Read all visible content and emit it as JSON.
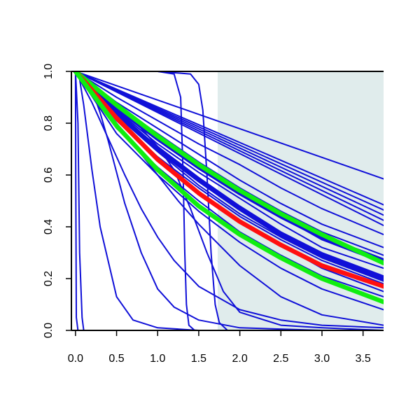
{
  "chart_data": {
    "type": "line",
    "title": "",
    "xlabel": "",
    "ylabel": "",
    "xlim": [
      -0.05,
      3.75
    ],
    "ylim": [
      0.0,
      1.0
    ],
    "grid": false,
    "legend": "none",
    "x_ticks": [
      {
        "value": 0.0,
        "label": "0.0"
      },
      {
        "value": 0.5,
        "label": "0.5"
      },
      {
        "value": 1.0,
        "label": "1.0"
      },
      {
        "value": 1.5,
        "label": "1.5"
      },
      {
        "value": 2.0,
        "label": "2.0"
      },
      {
        "value": 2.5,
        "label": "2.5"
      },
      {
        "value": 3.0,
        "label": "3.0"
      },
      {
        "value": 3.5,
        "label": "3.5"
      }
    ],
    "y_ticks": [
      {
        "value": 0.0,
        "label": "0.0"
      },
      {
        "value": 0.2,
        "label": "0.2"
      },
      {
        "value": 0.4,
        "label": "0.4"
      },
      {
        "value": 0.6,
        "label": "0.6"
      },
      {
        "value": 0.8,
        "label": "0.8"
      },
      {
        "value": 1.0,
        "label": "1.0"
      }
    ],
    "shaded_region": {
      "x_from": 1.73,
      "x_to": 3.75,
      "color": "#e0ecec"
    },
    "colors": {
      "blue": "#1010d8",
      "red": "#ff1010",
      "green": "#10ee10",
      "axis": "#000000"
    },
    "series": [
      {
        "color": "#1010d8",
        "width": 2,
        "x": [
          0,
          0.003,
          0.01,
          0.03
        ],
        "y": [
          1,
          0.6,
          0.05,
          0
        ]
      },
      {
        "color": "#1010d8",
        "width": 2,
        "x": [
          0,
          0.03,
          0.05,
          0.08,
          0.1
        ],
        "y": [
          1,
          0.8,
          0.3,
          0.05,
          0
        ]
      },
      {
        "color": "#1010d8",
        "width": 2,
        "x": [
          0,
          0.05,
          0.1,
          0.2,
          0.3,
          0.5,
          0.7,
          1.0,
          1.5,
          2.0,
          3.0,
          3.75
        ],
        "y": [
          1,
          0.97,
          0.87,
          0.62,
          0.4,
          0.13,
          0.04,
          0.01,
          0,
          0,
          0,
          0
        ]
      },
      {
        "color": "#1010d8",
        "width": 2,
        "x": [
          0,
          0.1,
          0.2,
          0.3,
          0.4,
          0.5,
          0.6,
          0.8,
          1.0,
          1.2,
          1.5,
          2.0,
          3.0,
          3.75
        ],
        "y": [
          1,
          0.98,
          0.93,
          0.84,
          0.73,
          0.61,
          0.49,
          0.3,
          0.16,
          0.09,
          0.04,
          0.01,
          0,
          0
        ]
      },
      {
        "color": "#1010d8",
        "width": 2,
        "x": [
          0,
          0.2,
          0.4,
          0.6,
          0.8,
          1.0,
          1.2,
          1.5,
          2.0,
          2.5,
          3.0,
          3.75
        ],
        "y": [
          1,
          0.88,
          0.74,
          0.6,
          0.47,
          0.36,
          0.27,
          0.17,
          0.08,
          0.04,
          0.02,
          0.01
        ]
      },
      {
        "color": "#1010d8",
        "width": 2,
        "x": [
          0,
          0.25,
          0.5,
          0.75,
          1.0,
          1.25,
          1.5,
          2.0,
          2.5,
          3.0,
          3.75
        ],
        "y": [
          1,
          0.9,
          0.8,
          0.7,
          0.6,
          0.5,
          0.41,
          0.25,
          0.13,
          0.06,
          0.02
        ]
      },
      {
        "color": "#1010d8",
        "width": 2,
        "x": [
          0,
          0.5,
          0.8,
          1.0,
          1.2,
          1.4,
          1.6,
          1.8,
          2.0,
          2.5,
          3.0,
          3.75
        ],
        "y": [
          1,
          0.86,
          0.78,
          0.71,
          0.62,
          0.47,
          0.3,
          0.15,
          0.07,
          0.02,
          0.01,
          0
        ]
      },
      {
        "color": "#1010d8",
        "width": 2,
        "x": [
          0,
          0.5,
          1.0,
          1.2,
          1.28,
          1.31,
          1.33,
          1.35,
          1.38,
          1.45
        ],
        "y": [
          1,
          1,
          1,
          0.99,
          0.9,
          0.6,
          0.3,
          0.1,
          0.02,
          0
        ]
      },
      {
        "color": "#1010d8",
        "width": 2,
        "x": [
          0,
          1.0,
          1.4,
          1.5,
          1.55,
          1.6,
          1.65,
          1.7,
          1.75,
          1.85
        ],
        "y": [
          1,
          1,
          0.99,
          0.95,
          0.85,
          0.6,
          0.3,
          0.1,
          0.03,
          0
        ]
      },
      {
        "color": "#1010d8",
        "width": 2,
        "x": [
          0,
          3.75
        ],
        "y": [
          1,
          0.585
        ]
      },
      {
        "color": "#1010d8",
        "width": 2,
        "x": [
          0,
          3.75
        ],
        "y": [
          1,
          0.485
        ]
      },
      {
        "color": "#1010d8",
        "width": 2,
        "x": [
          0,
          3.75
        ],
        "y": [
          1,
          0.465
        ]
      },
      {
        "color": "#1010d8",
        "width": 2,
        "x": [
          0,
          3.75
        ],
        "y": [
          1,
          0.445
        ]
      },
      {
        "color": "#1010d8",
        "width": 2,
        "x": [
          0,
          3.75
        ],
        "y": [
          1,
          0.425
        ]
      },
      {
        "color": "#1010d8",
        "width": 2,
        "x": [
          0,
          3.75
        ],
        "y": [
          1,
          0.405
        ]
      },
      {
        "color": "#1010d8",
        "width": 2,
        "x": [
          0,
          0.5,
          1.0,
          1.5,
          2.0,
          2.5,
          3.0,
          3.75
        ],
        "y": [
          1,
          0.9,
          0.81,
          0.72,
          0.64,
          0.55,
          0.47,
          0.37
        ]
      },
      {
        "color": "#1010d8",
        "width": 2,
        "x": [
          0,
          0.5,
          1.0,
          1.5,
          2.0,
          2.5,
          3.0,
          3.75
        ],
        "y": [
          1,
          0.88,
          0.78,
          0.68,
          0.58,
          0.49,
          0.41,
          0.32
        ]
      },
      {
        "color": "#1010d8",
        "width": 2,
        "x": [
          0,
          0.5,
          1.0,
          1.5,
          2.0,
          2.5,
          3.0,
          3.75
        ],
        "y": [
          1,
          0.87,
          0.76,
          0.65,
          0.55,
          0.46,
          0.38,
          0.29
        ]
      },
      {
        "color": "#1010d8",
        "width": 2,
        "x": [
          0,
          0.5,
          1.0,
          1.5,
          2.0,
          2.5,
          3.0,
          3.75
        ],
        "y": [
          1,
          0.86,
          0.74,
          0.63,
          0.53,
          0.44,
          0.35,
          0.26
        ]
      },
      {
        "color": "#1010d8",
        "width": 2,
        "x": [
          0,
          0.5,
          1.0,
          1.5,
          2.0,
          2.5,
          3.0,
          3.75
        ],
        "y": [
          1,
          0.85,
          0.72,
          0.61,
          0.51,
          0.41,
          0.32,
          0.24
        ]
      },
      {
        "color": "#1010d8",
        "width": 2,
        "x": [
          0,
          0.5,
          1.0,
          1.5,
          2.0,
          2.5,
          3.0,
          3.75
        ],
        "y": [
          1,
          0.84,
          0.71,
          0.59,
          0.48,
          0.38,
          0.3,
          0.21
        ]
      },
      {
        "color": "#1010d8",
        "width": 2,
        "x": [
          0,
          0.5,
          1.0,
          1.5,
          2.0,
          2.5,
          3.0,
          3.75
        ],
        "y": [
          1,
          0.83,
          0.69,
          0.56,
          0.45,
          0.36,
          0.28,
          0.19
        ]
      },
      {
        "color": "#1010d8",
        "width": 2,
        "x": [
          0,
          0.5,
          1.0,
          1.5,
          2.0,
          2.5,
          3.0,
          3.75
        ],
        "y": [
          1,
          0.81,
          0.66,
          0.53,
          0.42,
          0.33,
          0.24,
          0.15
        ]
      },
      {
        "color": "#1010d8",
        "width": 2,
        "x": [
          0,
          0.5,
          1.0,
          1.5,
          2.0,
          2.5,
          3.0,
          3.75
        ],
        "y": [
          1,
          0.82,
          0.67,
          0.55,
          0.44,
          0.35,
          0.27,
          0.18
        ]
      },
      {
        "color": "#1010d8",
        "width": 6,
        "x": [
          0,
          0.5,
          1.0,
          1.5,
          2.0,
          2.5,
          3.0,
          3.75
        ],
        "y": [
          1,
          0.86,
          0.74,
          0.63,
          0.53,
          0.44,
          0.36,
          0.27
        ]
      },
      {
        "color": "#1010d8",
        "width": 6,
        "x": [
          0,
          0.5,
          1.0,
          1.5,
          2.0,
          2.5,
          3.0,
          3.75
        ],
        "y": [
          1,
          0.84,
          0.7,
          0.58,
          0.47,
          0.37,
          0.29,
          0.2
        ]
      },
      {
        "color": "#1010d8",
        "width": 2,
        "x": [
          0,
          0.5,
          1.0,
          1.5,
          2.0,
          2.5,
          3.0,
          3.75
        ],
        "y": [
          1,
          0.78,
          0.63,
          0.5,
          0.38,
          0.29,
          0.21,
          0.13
        ]
      },
      {
        "color": "#1010d8",
        "width": 2,
        "x": [
          0,
          0.5,
          1.0,
          1.5,
          2.0,
          2.5,
          3.0,
          3.75
        ],
        "y": [
          1,
          0.76,
          0.6,
          0.46,
          0.34,
          0.24,
          0.16,
          0.08
        ]
      },
      {
        "color": "#10ee10",
        "width": 6.5,
        "x": [
          0,
          0.5,
          1.0,
          1.5,
          2.0,
          2.5,
          3.0,
          3.75
        ],
        "y": [
          1,
          0.87,
          0.75,
          0.64,
          0.54,
          0.45,
          0.37,
          0.26
        ]
      },
      {
        "color": "#ff1010",
        "width": 6.5,
        "x": [
          0,
          0.5,
          1.0,
          1.5,
          2.0,
          2.5,
          3.0,
          3.75
        ],
        "y": [
          1,
          0.82,
          0.66,
          0.53,
          0.42,
          0.33,
          0.25,
          0.17
        ]
      },
      {
        "color": "#10ee10",
        "width": 6.5,
        "x": [
          0,
          0.5,
          1.0,
          1.5,
          2.0,
          2.5,
          3.0,
          3.75
        ],
        "y": [
          1,
          0.79,
          0.62,
          0.48,
          0.37,
          0.28,
          0.2,
          0.11
        ]
      }
    ]
  }
}
